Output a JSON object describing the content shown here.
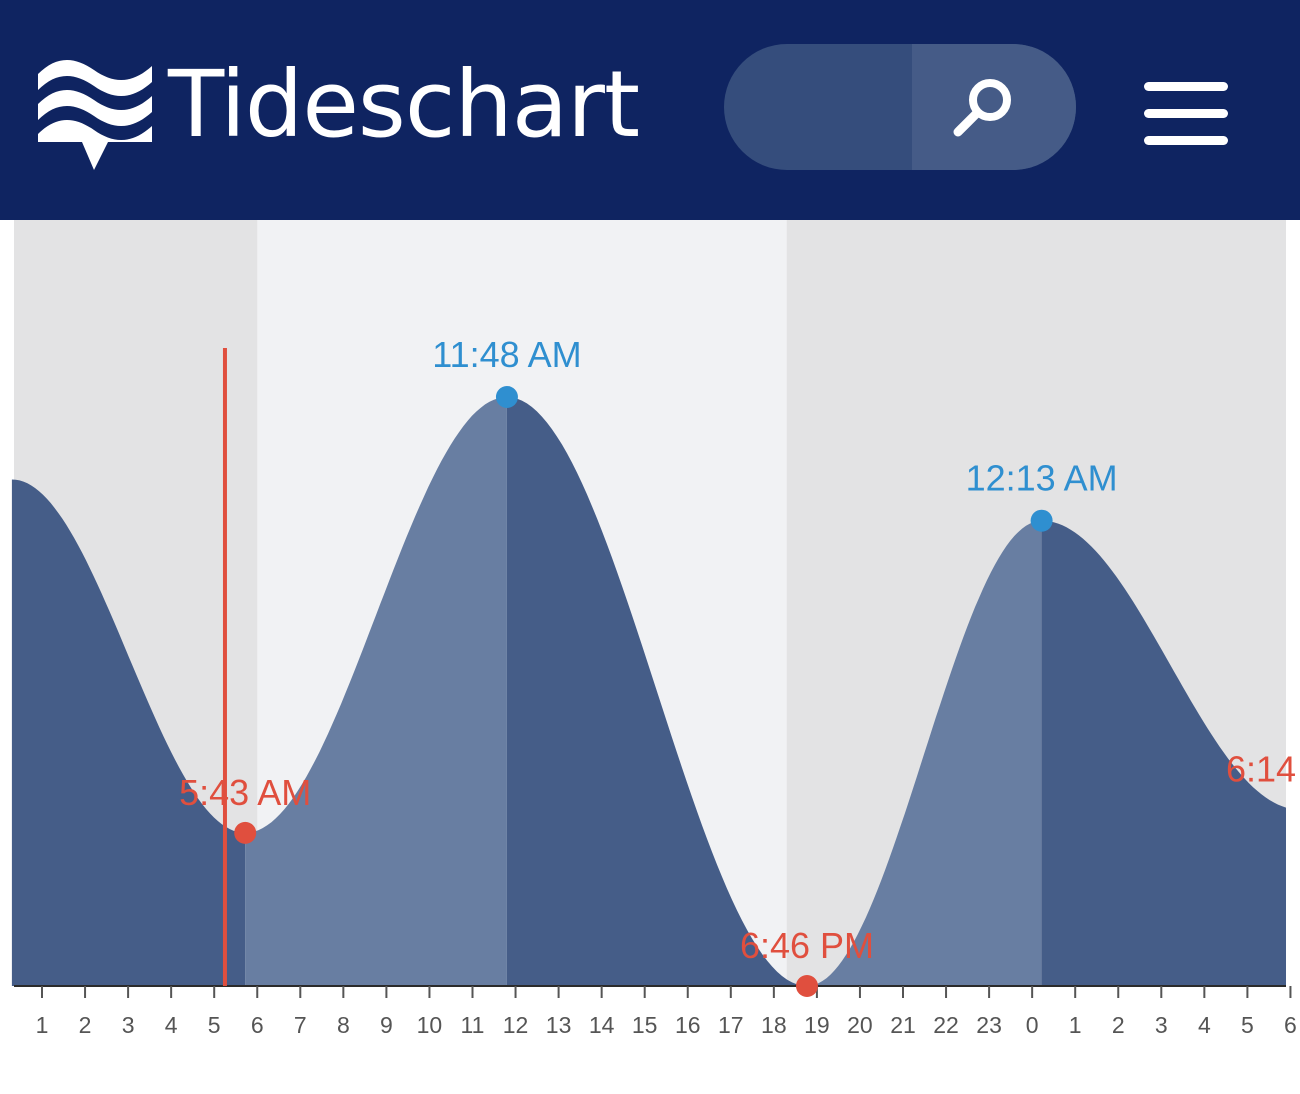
{
  "header": {
    "brand": "Tideschart",
    "search_placeholder": "",
    "logo_icon": "waves-logo-icon",
    "search_icon": "magnifier-icon",
    "menu_icon": "hamburger-menu-icon"
  },
  "colors": {
    "header_bg": "#0f2461",
    "night_band": "#e3e3e4",
    "day_band": "#f1f2f4",
    "tide_rising": "#687ea2",
    "tide_falling": "#455d88",
    "high_tide": "#2f8fd0",
    "low_tide": "#e04f3e",
    "now_line": "#e04f3e"
  },
  "chart_data": {
    "type": "area",
    "title": "",
    "xlabel": "",
    "ylabel": "",
    "x_start_hour": 0.3,
    "x_end_hour": 30.0,
    "tick_labels": [
      "1",
      "2",
      "3",
      "4",
      "5",
      "6",
      "7",
      "8",
      "9",
      "10",
      "11",
      "12",
      "13",
      "14",
      "15",
      "16",
      "17",
      "18",
      "19",
      "20",
      "21",
      "22",
      "23",
      "0",
      "1",
      "2",
      "3",
      "4",
      "5",
      "6"
    ],
    "extremes": [
      {
        "type": "low",
        "time": "5:43 AM",
        "hour": 5.72,
        "level": 0.26
      },
      {
        "type": "high",
        "time": "11:48 AM",
        "hour": 11.8,
        "level": 1.0
      },
      {
        "type": "low",
        "time": "6:46 PM",
        "hour": 18.77,
        "level": 0.0
      },
      {
        "type": "high",
        "time": "12:13 AM",
        "hour": 24.22,
        "level": 0.79
      },
      {
        "type": "low",
        "time": "6:14",
        "hour": 30.2,
        "level": 0.3
      }
    ],
    "start_level": 0.86,
    "now_hour": 5.25,
    "daylight": {
      "start_hour": 6.0,
      "end_hour": 18.3
    },
    "level_range": [
      0,
      1
    ]
  }
}
